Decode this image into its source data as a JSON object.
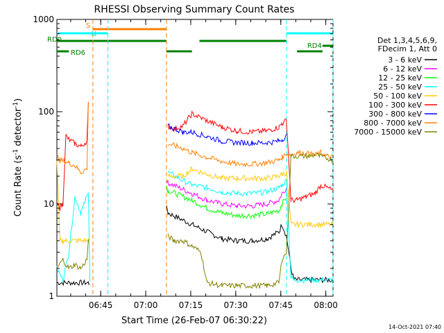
{
  "chart_data": {
    "type": "line",
    "title": "RHESSI Observing Summary Count Rates",
    "xlabel": "Start Time (26-Feb-07 06:30:22)",
    "ylabel_main": "Count Rate (s",
    "ylabel_sup1": "-1",
    "ylabel_mid": " detector",
    "ylabel_sup2": "-1",
    "ylabel_end": ")",
    "yscale": "log",
    "ylim": [
      1,
      1000
    ],
    "xlim_minutes": [
      0,
      92
    ],
    "x_unit": "minutes after 06:30:22",
    "x_ticks": [
      {
        "label": "06:45",
        "minute": 14.6
      },
      {
        "label": "07:00",
        "minute": 29.6
      },
      {
        "label": "07:15",
        "minute": 44.6
      },
      {
        "label": "07:30",
        "minute": 59.6
      },
      {
        "label": "07:45",
        "minute": 74.6
      },
      {
        "label": "08:00",
        "minute": 89.6
      }
    ],
    "y_ticks": [
      {
        "label": "1",
        "value": 1
      },
      {
        "label": "10",
        "value": 10
      },
      {
        "label": "100",
        "value": 100
      },
      {
        "label": "1000",
        "value": 1000
      }
    ],
    "legend_header": [
      "Det 1,3,4,5,6,9,",
      "FDecim 1, Att 0"
    ],
    "series": [
      {
        "name": "3 - 6 keV",
        "color": "#000000",
        "x": [
          0,
          10.5,
          11,
          25,
          36.5,
          37,
          45,
          50,
          55,
          60,
          65,
          70,
          74,
          75,
          76.5,
          78,
          79,
          92
        ],
        "y": [
          1.4,
          1.4,
          1.4,
          null,
          9,
          8,
          6,
          5,
          4.2,
          4,
          4,
          4.2,
          5,
          6,
          4.5,
          2,
          1.5,
          1.5
        ]
      },
      {
        "name": "6 - 12 keV",
        "color": "#ff00ff",
        "x": [
          36.5,
          37,
          45,
          50,
          55,
          60,
          65,
          70,
          74,
          75,
          76.5
        ],
        "y": [
          18,
          17,
          13,
          11,
          10,
          9.5,
          9.5,
          10,
          11,
          13,
          15
        ]
      },
      {
        "name": "12 - 25 keV",
        "color": "#00ff00",
        "x": [
          36.5,
          37,
          45,
          50,
          55,
          60,
          65,
          70,
          74,
          75,
          76.5
        ],
        "y": [
          16,
          14,
          11,
          9,
          8,
          7.5,
          7.5,
          7.8,
          8.5,
          10,
          12
        ]
      },
      {
        "name": "25 - 50 keV",
        "color": "#00ffff",
        "x": [
          0,
          2,
          4,
          6,
          8,
          10,
          10.5,
          11,
          36.5,
          37,
          45,
          50,
          55,
          60,
          65,
          70,
          74,
          75,
          76.5,
          78,
          79,
          92
        ],
        "y": [
          2,
          1.5,
          3,
          12,
          8,
          12,
          14,
          1.5,
          null,
          22,
          16,
          15,
          13.5,
          13,
          13,
          13.5,
          15,
          16,
          18,
          1.6,
          1.5,
          1.5
        ]
      },
      {
        "name": "50 - 100 keV",
        "color": "#ffc800",
        "x": [
          0,
          1,
          2,
          3,
          10.5,
          11,
          36.5,
          37,
          42,
          45,
          50,
          55,
          60,
          65,
          70,
          74,
          75,
          76.5,
          78,
          85,
          92
        ],
        "y": [
          30,
          4,
          4,
          4,
          4,
          4,
          null,
          20,
          20,
          24,
          21,
          19,
          19,
          19,
          19,
          20,
          21,
          22,
          6,
          6,
          6
        ]
      },
      {
        "name": "100 - 300 keV",
        "color": "#ff0000",
        "x": [
          0,
          1,
          2,
          3,
          4,
          6,
          8,
          10,
          10.5,
          11,
          36.5,
          37,
          39,
          42,
          45,
          50,
          55,
          60,
          65,
          70,
          74,
          75,
          76.5,
          78,
          80,
          83,
          86,
          88,
          90,
          92
        ],
        "y": [
          10,
          9,
          10,
          55,
          50,
          45,
          42,
          48,
          120,
          null,
          null,
          70,
          65,
          70,
          95,
          80,
          68,
          62,
          60,
          62,
          68,
          75,
          80,
          11,
          11,
          12,
          13,
          16,
          15,
          14
        ]
      },
      {
        "name": "300 - 800 keV",
        "color": "#0000ff",
        "x": [
          0,
          10.5,
          11,
          36.5,
          37,
          42,
          45,
          50,
          55,
          60,
          65,
          70,
          74,
          75,
          76.5
        ],
        "y": [
          null,
          null,
          null,
          null,
          70,
          60,
          60,
          54,
          48,
          46,
          46,
          46,
          48,
          50,
          55
        ]
      },
      {
        "name": "800 - 7000 keV",
        "color": "#ff8000",
        "x": [
          0,
          1,
          4,
          6,
          8,
          10,
          10.5,
          11,
          36.5,
          37,
          39,
          42,
          45,
          50,
          55,
          60,
          65,
          70,
          74,
          75,
          76.5,
          78,
          80,
          84,
          86,
          88,
          90,
          92
        ],
        "y": [
          33,
          30,
          28,
          26,
          22,
          24,
          120,
          null,
          null,
          45,
          43,
          40,
          36,
          32,
          29,
          27,
          27,
          28,
          30,
          32,
          35,
          34,
          36,
          35,
          34,
          36,
          33,
          32
        ]
      },
      {
        "name": "7000 - 15000 keV",
        "color": "#808000",
        "x": [
          0,
          2,
          4,
          6,
          8,
          10,
          10.5,
          11,
          36.5,
          37,
          39,
          42,
          45,
          48,
          50,
          55,
          60,
          65,
          70,
          74,
          75,
          76.5,
          78,
          84,
          86,
          92
        ],
        "y": [
          2,
          2.5,
          2,
          2.2,
          2,
          2.5,
          4,
          null,
          null,
          4.5,
          4,
          4,
          3.5,
          3,
          1.4,
          1.3,
          1.3,
          1.3,
          1.3,
          1.4,
          2.5,
          3,
          33,
          33,
          34,
          30
        ]
      }
    ],
    "attenuator_bars": [
      {
        "label": "S",
        "color": "#ff8000",
        "start": 12,
        "end": 36.5,
        "level": "top"
      },
      {
        "label": "N",
        "color": "#00ffff",
        "start": 0,
        "end": 17,
        "level": "second"
      },
      {
        "label": "",
        "color": "#00ffff",
        "start": 76.5,
        "end": 92,
        "level": "second"
      }
    ],
    "mode_bars": [
      {
        "label": "RD0",
        "color": "#008000",
        "start": 0,
        "end": 36.5,
        "level": "third"
      },
      {
        "label": "",
        "color": "#008000",
        "start": 47.5,
        "end": 76.5,
        "level": "third"
      },
      {
        "label": "RD6",
        "color": "#008000",
        "start": 0,
        "end": 4,
        "level": "fourth"
      },
      {
        "label": "",
        "color": "#008000",
        "start": 36.5,
        "end": 45,
        "level": "fourth"
      },
      {
        "label": "",
        "color": "#008000",
        "start": 80,
        "end": 88.5,
        "level": "fourth"
      },
      {
        "label": "RD4",
        "color": "#008000",
        "start": 88.5,
        "end": 92,
        "level": "third_low"
      }
    ],
    "vlines": [
      {
        "minute": 12,
        "color": "#ff8000"
      },
      {
        "minute": 17,
        "color": "#00ffff"
      },
      {
        "minute": 36.5,
        "color": "#ff8000"
      },
      {
        "minute": 76.5,
        "color": "#00ffff"
      },
      {
        "minute": 92,
        "color": "#00ffff"
      }
    ],
    "footer_timestamp": "14-Oct-2021 07:40"
  }
}
